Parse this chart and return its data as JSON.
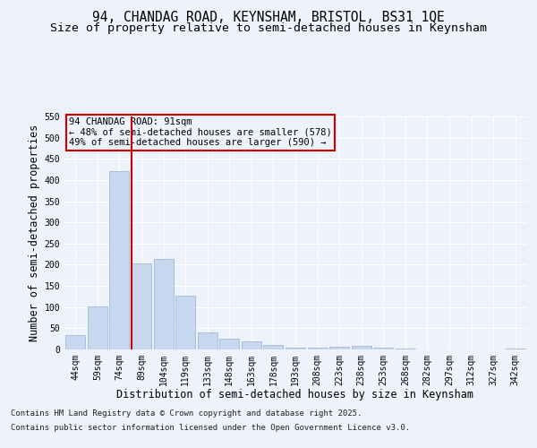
{
  "title_line1": "94, CHANDAG ROAD, KEYNSHAM, BRISTOL, BS31 1QE",
  "title_line2": "Size of property relative to semi-detached houses in Keynsham",
  "xlabel": "Distribution of semi-detached houses by size in Keynsham",
  "ylabel": "Number of semi-detached properties",
  "categories": [
    "44sqm",
    "59sqm",
    "74sqm",
    "89sqm",
    "104sqm",
    "119sqm",
    "133sqm",
    "148sqm",
    "163sqm",
    "178sqm",
    "193sqm",
    "208sqm",
    "223sqm",
    "238sqm",
    "253sqm",
    "268sqm",
    "282sqm",
    "297sqm",
    "312sqm",
    "327sqm",
    "342sqm"
  ],
  "values": [
    33,
    102,
    420,
    204,
    214,
    126,
    40,
    25,
    18,
    10,
    5,
    4,
    7,
    8,
    5,
    2,
    0,
    1,
    0,
    0,
    3
  ],
  "bar_color": "#c5d8f0",
  "bar_edgecolor": "#a0b8d8",
  "vline_x_index": 3,
  "vline_color": "#cc0000",
  "annotation_title": "94 CHANDAG ROAD: 91sqm",
  "annotation_line2": "← 48% of semi-detached houses are smaller (578)",
  "annotation_line3": "49% of semi-detached houses are larger (590) →",
  "annotation_box_edgecolor": "#cc0000",
  "footnote_line1": "Contains HM Land Registry data © Crown copyright and database right 2025.",
  "footnote_line2": "Contains public sector information licensed under the Open Government Licence v3.0.",
  "ylim": [
    0,
    550
  ],
  "yticks": [
    0,
    50,
    100,
    150,
    200,
    250,
    300,
    350,
    400,
    450,
    500,
    550
  ],
  "background_color": "#eef2fa",
  "grid_color": "#ffffff",
  "title_fontsize": 10.5,
  "subtitle_fontsize": 9.5,
  "axis_label_fontsize": 8.5,
  "tick_fontsize": 7,
  "annotation_fontsize": 7.5,
  "footnote_fontsize": 6.5
}
